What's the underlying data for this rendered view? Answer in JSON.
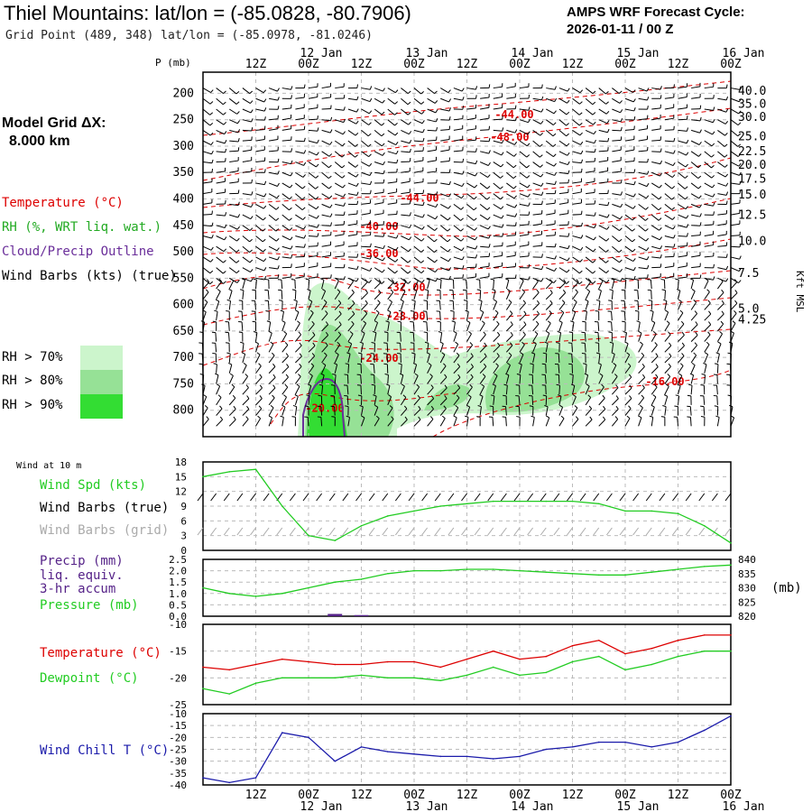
{
  "header": {
    "title": "Thiel Mountains:  lat/lon = (-85.0828, -80.7906)",
    "subtitle": "Grid Point (489, 348) lat/lon = (-85.0978, -81.0246)",
    "cycle_line1": "AMPS WRF Forecast Cycle:",
    "cycle_line2": "2026-01-11 / 00  Z"
  },
  "sidebar": {
    "model_grid_line1": "Model Grid ΔX:",
    "model_grid_line2": "8.000 km",
    "legend_temperature": "Temperature (°C)",
    "legend_rh": "RH (%, WRT liq. wat.)",
    "legend_cloud": "Cloud/Precip Outline",
    "legend_wind": "Wind Barbs (kts) (true)",
    "rh_bins": [
      "RH > 70%",
      "RH > 80%",
      "RH > 90%"
    ]
  },
  "colors": {
    "temperature": "#dd0000",
    "rh70": "#ccf5cc",
    "rh80": "#96e196",
    "rh90": "#33dd33",
    "cloud": "#6a2e9a",
    "wind_true": "#000000",
    "wind_grid": "#aaaaaa",
    "wind_speed": "#22cc22",
    "precip": "#552288",
    "dewpoint": "#22cc22",
    "wind_chill": "#1a1aaa"
  },
  "time_axis": {
    "hour_labels": [
      "12Z",
      "00Z",
      "12Z",
      "00Z",
      "12Z",
      "00Z",
      "12Z",
      "00Z",
      "12Z",
      "00Z"
    ],
    "date_labels": [
      "12 Jan",
      "13 Jan",
      "14 Jan",
      "15 Jan",
      "16 Jan"
    ]
  },
  "chart_data": [
    {
      "type": "heatmap",
      "name": "vertical_cross_section",
      "ylabel": "P (mb)",
      "y2label": "Kft MSL",
      "pressure_ticks": [
        200,
        250,
        300,
        350,
        400,
        450,
        500,
        550,
        600,
        650,
        700,
        750,
        800
      ],
      "height_ticks": [
        "40.0",
        "35.0",
        "30.0",
        "25.0",
        "22.5",
        "20.0",
        "17.5",
        "15.0",
        "12.5",
        "10.0",
        "7.5",
        "5.0",
        "4.25"
      ],
      "ylim": [
        160,
        850
      ],
      "xlim_hours": [
        0,
        120
      ],
      "temperature_contours": [
        {
          "label": "-44.00",
          "level": -44,
          "p_at_label": 240
        },
        {
          "label": "-48.00",
          "level": -48,
          "p_at_label": 283
        },
        {
          "label": "-44.00",
          "level": -44,
          "p_at_label": 398
        },
        {
          "label": "-40.00",
          "level": -40,
          "p_at_label": 452
        },
        {
          "label": "-36.00",
          "level": -36,
          "p_at_label": 503
        },
        {
          "label": "-32.00",
          "level": -32,
          "p_at_label": 567
        },
        {
          "label": "-28.00",
          "level": -28,
          "p_at_label": 622
        },
        {
          "label": "-24.00",
          "level": -24,
          "p_at_label": 701
        },
        {
          "label": "-20.00",
          "level": -20,
          "p_at_label": 796
        },
        {
          "label": "-16.00",
          "level": -16,
          "p_at_label": 746
        }
      ]
    },
    {
      "type": "line",
      "name": "wind_10m",
      "title": "Wind at 10 m",
      "series_labels": [
        "Wind Spd (kts)",
        "Wind Barbs (true)",
        "Wind Barbs (grid)"
      ],
      "yticks": [
        0,
        3,
        6,
        9,
        12,
        15,
        18
      ],
      "ylim": [
        0,
        18
      ],
      "x_hours": [
        0,
        6,
        12,
        18,
        24,
        30,
        36,
        42,
        48,
        54,
        60,
        66,
        72,
        78,
        84,
        90,
        96,
        102,
        108,
        114,
        120
      ],
      "wind_speed": [
        15,
        16,
        16.5,
        9,
        3,
        2,
        5,
        7,
        8,
        9,
        9.5,
        10,
        10,
        10,
        10,
        9.5,
        8,
        8,
        7.5,
        5,
        1.5
      ]
    },
    {
      "type": "line",
      "name": "precip_pressure",
      "series_labels": [
        "Precip (mm)",
        "liq. equiv.",
        "3-hr accum",
        "Pressure (mb)"
      ],
      "yticks_left": [
        "0.0",
        "0.5",
        "1.0",
        "1.5",
        "2.0",
        "2.5"
      ],
      "yticks_right": [
        820,
        825,
        830,
        835,
        840
      ],
      "y2label": "(mb)",
      "ylim_left": [
        0,
        2.5
      ],
      "ylim_right": [
        820,
        840
      ],
      "x_hours": [
        0,
        6,
        12,
        18,
        24,
        30,
        36,
        42,
        48,
        54,
        60,
        66,
        72,
        78,
        84,
        90,
        96,
        102,
        108,
        114,
        120
      ],
      "pressure": [
        830,
        828,
        827,
        828,
        830,
        832,
        833,
        835,
        836,
        836,
        836.5,
        836.5,
        836,
        835.5,
        835,
        834.5,
        834.5,
        835.5,
        836.5,
        837.5,
        838
      ],
      "precip": [
        0,
        0,
        0,
        0,
        0,
        0.1,
        0.05,
        0,
        0,
        0,
        0,
        0,
        0,
        0,
        0,
        0,
        0,
        0,
        0,
        0,
        0
      ]
    },
    {
      "type": "line",
      "name": "temperature_dewpoint",
      "series_labels": [
        "Temperature (°C)",
        "Dewpoint (°C)"
      ],
      "yticks": [
        -25,
        -20,
        -15,
        -10
      ],
      "ylim": [
        -25,
        -10
      ],
      "x_hours": [
        0,
        6,
        12,
        18,
        24,
        30,
        36,
        42,
        48,
        54,
        60,
        66,
        72,
        78,
        84,
        90,
        96,
        102,
        108,
        114,
        120
      ],
      "temperature": [
        -18,
        -18.5,
        -17.5,
        -16.5,
        -17,
        -17.5,
        -17.5,
        -17,
        -17,
        -18,
        -16.5,
        -15,
        -16.5,
        -16,
        -14,
        -13,
        -15.5,
        -14.5,
        -13,
        -12,
        -12
      ],
      "dewpoint": [
        -22,
        -23,
        -21,
        -20,
        -20,
        -20,
        -19.5,
        -20,
        -20,
        -20.5,
        -19.5,
        -18,
        -19.5,
        -19,
        -17,
        -16,
        -18.5,
        -17.5,
        -16,
        -15,
        -15
      ]
    },
    {
      "type": "line",
      "name": "wind_chill",
      "series_labels": [
        "Wind Chill T (°C)"
      ],
      "yticks": [
        -40,
        -35,
        -30,
        -25,
        -20,
        -15,
        -10
      ],
      "ylim": [
        -40,
        -10
      ],
      "x_hours": [
        0,
        6,
        12,
        18,
        24,
        30,
        36,
        42,
        48,
        54,
        60,
        66,
        72,
        78,
        84,
        90,
        96,
        102,
        108,
        114,
        120
      ],
      "wind_chill": [
        -37,
        -39,
        -37,
        -18,
        -20,
        -30,
        -24,
        -26,
        -27,
        -28,
        -28,
        -29,
        -28,
        -25,
        -24,
        -22,
        -22,
        -24,
        -22,
        -17,
        -11
      ]
    }
  ]
}
